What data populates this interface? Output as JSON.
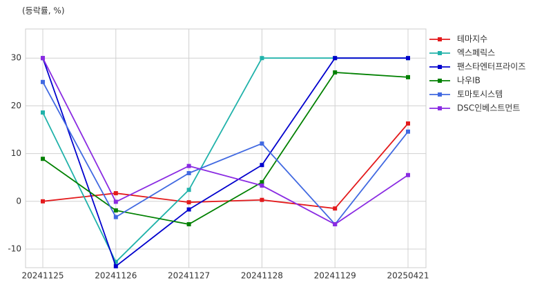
{
  "chart_data": {
    "type": "line",
    "y_label": "(등락률, %)",
    "categories": [
      "20241125",
      "20241126",
      "20241127",
      "20241128",
      "20241129",
      "20250421"
    ],
    "series": [
      {
        "name": "테마지수",
        "color": "#e31a1c",
        "values": [
          0,
          1.7,
          -0.2,
          0.3,
          -1.5,
          16.3
        ]
      },
      {
        "name": "엑스페릭스",
        "color": "#20b2aa",
        "values": [
          18.6,
          -12.7,
          2.4,
          30,
          30,
          30
        ]
      },
      {
        "name": "팬스타엔터프라이즈",
        "color": "#0000cd",
        "values": [
          30,
          -13.6,
          -1.7,
          7.6,
          30,
          30
        ]
      },
      {
        "name": "나우IB",
        "color": "#008000",
        "values": [
          8.9,
          -1.9,
          -4.8,
          4.0,
          27,
          26
        ]
      },
      {
        "name": "토마토시스템",
        "color": "#4169e1",
        "values": [
          25,
          -3.3,
          5.9,
          12.1,
          -4.8,
          14.6
        ]
      },
      {
        "name": "DSC인베스트먼트",
        "color": "#8a2be2",
        "values": [
          30,
          -0.1,
          7.4,
          3.3,
          -4.8,
          5.5
        ]
      }
    ],
    "ylim": [
      -13.9,
      36.1
    ],
    "yticks": [
      -10,
      0,
      10,
      20,
      30
    ],
    "grid": true,
    "legend": "right"
  }
}
